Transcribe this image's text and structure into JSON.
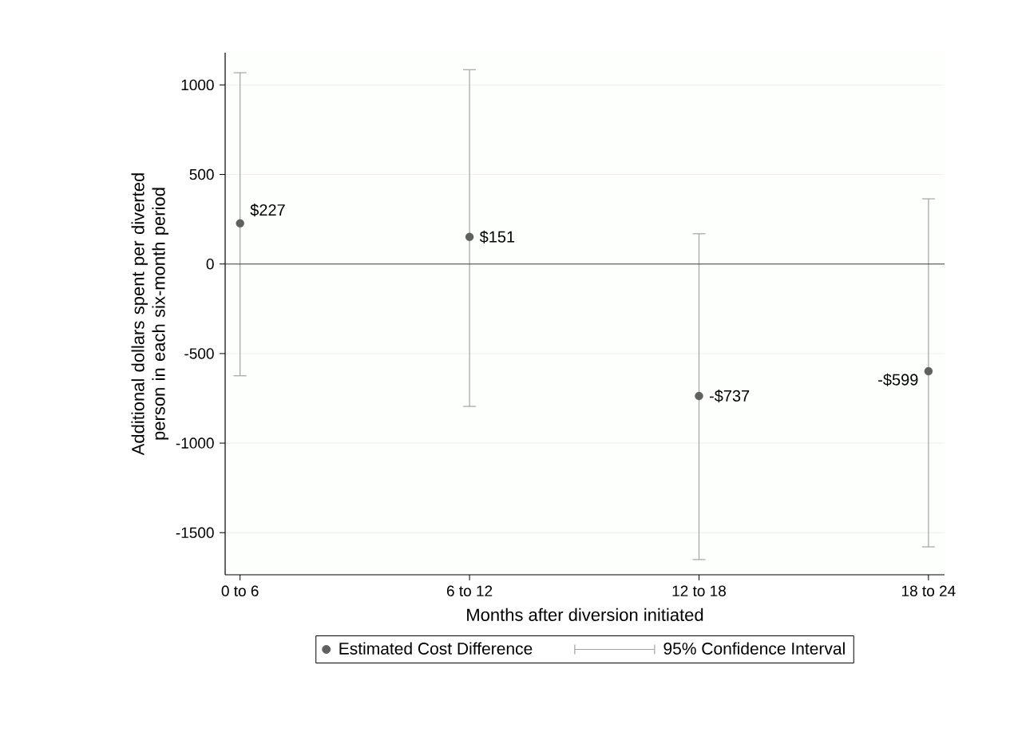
{
  "chart_data": {
    "type": "scatter",
    "xlabel": "Months after diversion initiated",
    "ylabel": "Additional dollars spent per diverted person in each six-month period",
    "categories": [
      "0 to 6",
      "6 to 12",
      "12 to 18",
      "18 to 24"
    ],
    "series": [
      {
        "name": "Estimated Cost Difference",
        "color": "#606060",
        "values": [
          227,
          151,
          -737,
          -599
        ],
        "value_labels": [
          "$227",
          "$151",
          "-$737",
          "-$599"
        ],
        "errors": [
          [
            -624,
            1068
          ],
          [
            -795,
            1085
          ],
          [
            -1650,
            169
          ],
          [
            -1579,
            364
          ]
        ]
      }
    ],
    "annotations": [
      "95% Confidence Interval"
    ],
    "ylim": [
      -1735,
      1180
    ],
    "yticks": [
      -1500,
      -1000,
      -500,
      0,
      500,
      1000
    ],
    "ref_lines": [
      {
        "axis": "y",
        "value": 0,
        "color": "#404040"
      }
    ],
    "grid": "y",
    "legend": "bottom"
  }
}
